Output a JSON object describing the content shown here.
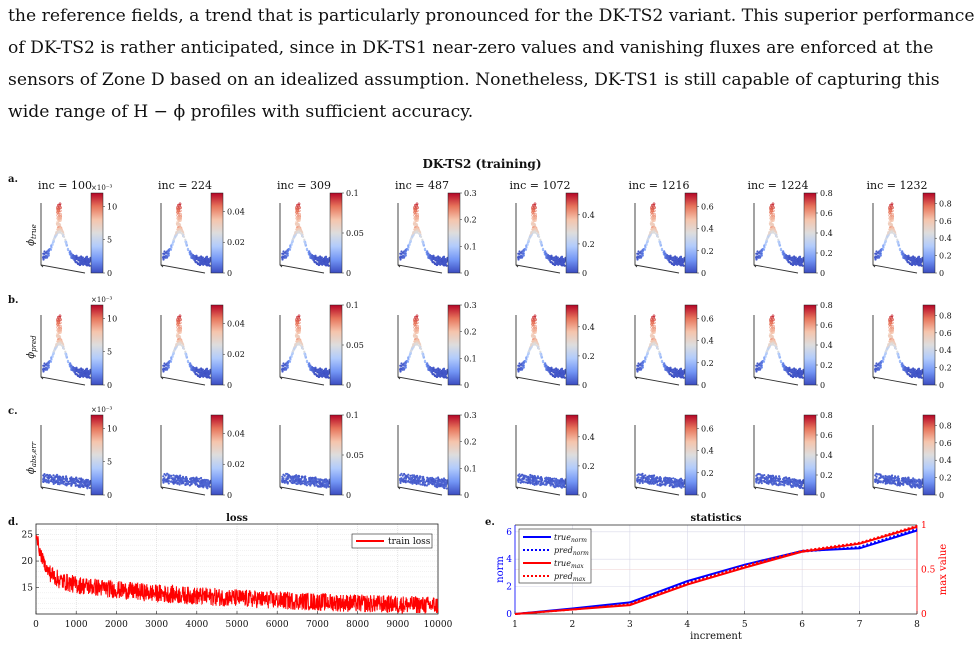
{
  "paragraph": {
    "lines": [
      "the reference fields, a trend that is particularly pronounced for the DK-TS2 variant. This superior performance",
      "of DK-TS2 is rather anticipated, since in DK-TS1 near-zero values and vanishing fluxes are enforced at the",
      "sensors of Zone D based on an idealized assumption. Nonetheless, DK-TS1 is still capable of capturing this",
      "wide range of H − ϕ profiles with sufficient accuracy."
    ]
  },
  "figure": {
    "title": "DK-TS2 (training)",
    "panel_labels": {
      "a": "a.",
      "b": "b.",
      "c": "c.",
      "d": "d.",
      "e": "e."
    },
    "row_ylabels": [
      "ϕ_true",
      "ϕ_pred",
      "ϕ_abs,err"
    ],
    "columns": [
      {
        "inc": "inc = 100",
        "mult": "×10⁻³",
        "ticks": [
          "10",
          "5",
          "0"
        ],
        "max": 0.012
      },
      {
        "inc": "inc = 224",
        "mult": "",
        "ticks": [
          "0.04",
          "0.02",
          "0"
        ],
        "max": 0.052
      },
      {
        "inc": "inc = 309",
        "mult": "",
        "ticks": [
          "0.1",
          "0.05",
          "0"
        ],
        "max": 0.1
      },
      {
        "inc": "inc = 487",
        "mult": "",
        "ticks": [
          "0.3",
          "0.2",
          "0.1",
          "0"
        ],
        "max": 0.3
      },
      {
        "inc": "inc = 1072",
        "mult": "",
        "ticks": [
          "0.4",
          "0.2",
          "0"
        ],
        "max": 0.55
      },
      {
        "inc": "inc = 1216",
        "mult": "",
        "ticks": [
          "0.6",
          "0.4",
          "0.2",
          "0"
        ],
        "max": 0.72
      },
      {
        "inc": "inc = 1224",
        "mult": "",
        "ticks": [
          "0.8",
          "0.6",
          "0.4",
          "0.2",
          "0"
        ],
        "max": 0.8
      },
      {
        "inc": "inc = 1232",
        "mult": "",
        "ticks": [
          "0.8",
          "0.6",
          "0.4",
          "0.2",
          "0"
        ],
        "max": 0.92
      }
    ],
    "colormap": [
      "#3b4cc0",
      "#7396f5",
      "#b1cbfc",
      "#dddddd",
      "#f5c4ac",
      "#e7745b",
      "#b40426"
    ]
  },
  "chart_data": [
    {
      "type": "line",
      "title": "loss",
      "series": [
        {
          "name": "train loss",
          "color": "#ff0000"
        }
      ],
      "x_ticks": [
        "0",
        "1000",
        "2000",
        "3000",
        "4000",
        "5000",
        "6000",
        "7000",
        "8000",
        "9000",
        "10000"
      ],
      "y_ticks": [
        "25",
        "20",
        "15"
      ],
      "xlim": [
        0,
        10000
      ],
      "ylim": [
        10,
        27
      ],
      "trend": {
        "x": [
          0,
          100,
          300,
          600,
          1000,
          2000,
          3000,
          4000,
          5000,
          6000,
          7000,
          8000,
          9000,
          10000
        ],
        "y": [
          25.5,
          21.5,
          18.0,
          16.3,
          15.5,
          14.6,
          13.9,
          13.4,
          13.0,
          12.6,
          12.3,
          12.0,
          11.8,
          11.6
        ]
      },
      "grid": true,
      "legend_position": "top-right"
    },
    {
      "type": "line",
      "title": "statistics",
      "xlabel": "increment",
      "ylabel": "norm",
      "ylabel_right": "max value",
      "x": [
        1,
        2,
        3,
        4,
        5,
        6,
        7,
        8
      ],
      "x_ticks": [
        "1",
        "2",
        "3",
        "4",
        "5",
        "6",
        "7",
        "8"
      ],
      "y_ticks": [
        "0",
        "2",
        "4",
        "6"
      ],
      "y_ticks_right": [
        "0",
        "0.5",
        "1"
      ],
      "ylim": [
        0,
        6.5
      ],
      "ylim_right": [
        0,
        1
      ],
      "series": [
        {
          "name": "true_norm",
          "label": "true",
          "sub": "norm",
          "axis": "left",
          "color": "#0000ff",
          "dash": false,
          "values": [
            0.0,
            0.4,
            0.85,
            2.4,
            3.6,
            4.6,
            4.8,
            6.1
          ]
        },
        {
          "name": "pred_norm",
          "label": "pred",
          "sub": "norm",
          "axis": "left",
          "color": "#0000ff",
          "dash": true,
          "values": [
            0.0,
            0.35,
            0.8,
            2.3,
            3.55,
            4.55,
            4.9,
            6.2
          ]
        },
        {
          "name": "true_max",
          "label": "true",
          "sub": "max",
          "axis": "right",
          "color": "#ff0000",
          "dash": false,
          "values": [
            0.0,
            0.05,
            0.1,
            0.33,
            0.52,
            0.7,
            0.79,
            0.98
          ]
        },
        {
          "name": "pred_max",
          "label": "pred",
          "sub": "max",
          "axis": "right",
          "color": "#ff0000",
          "dash": true,
          "values": [
            0.0,
            0.05,
            0.11,
            0.34,
            0.54,
            0.71,
            0.8,
            0.99
          ]
        }
      ],
      "grid": true,
      "legend_position": "top-left"
    }
  ]
}
